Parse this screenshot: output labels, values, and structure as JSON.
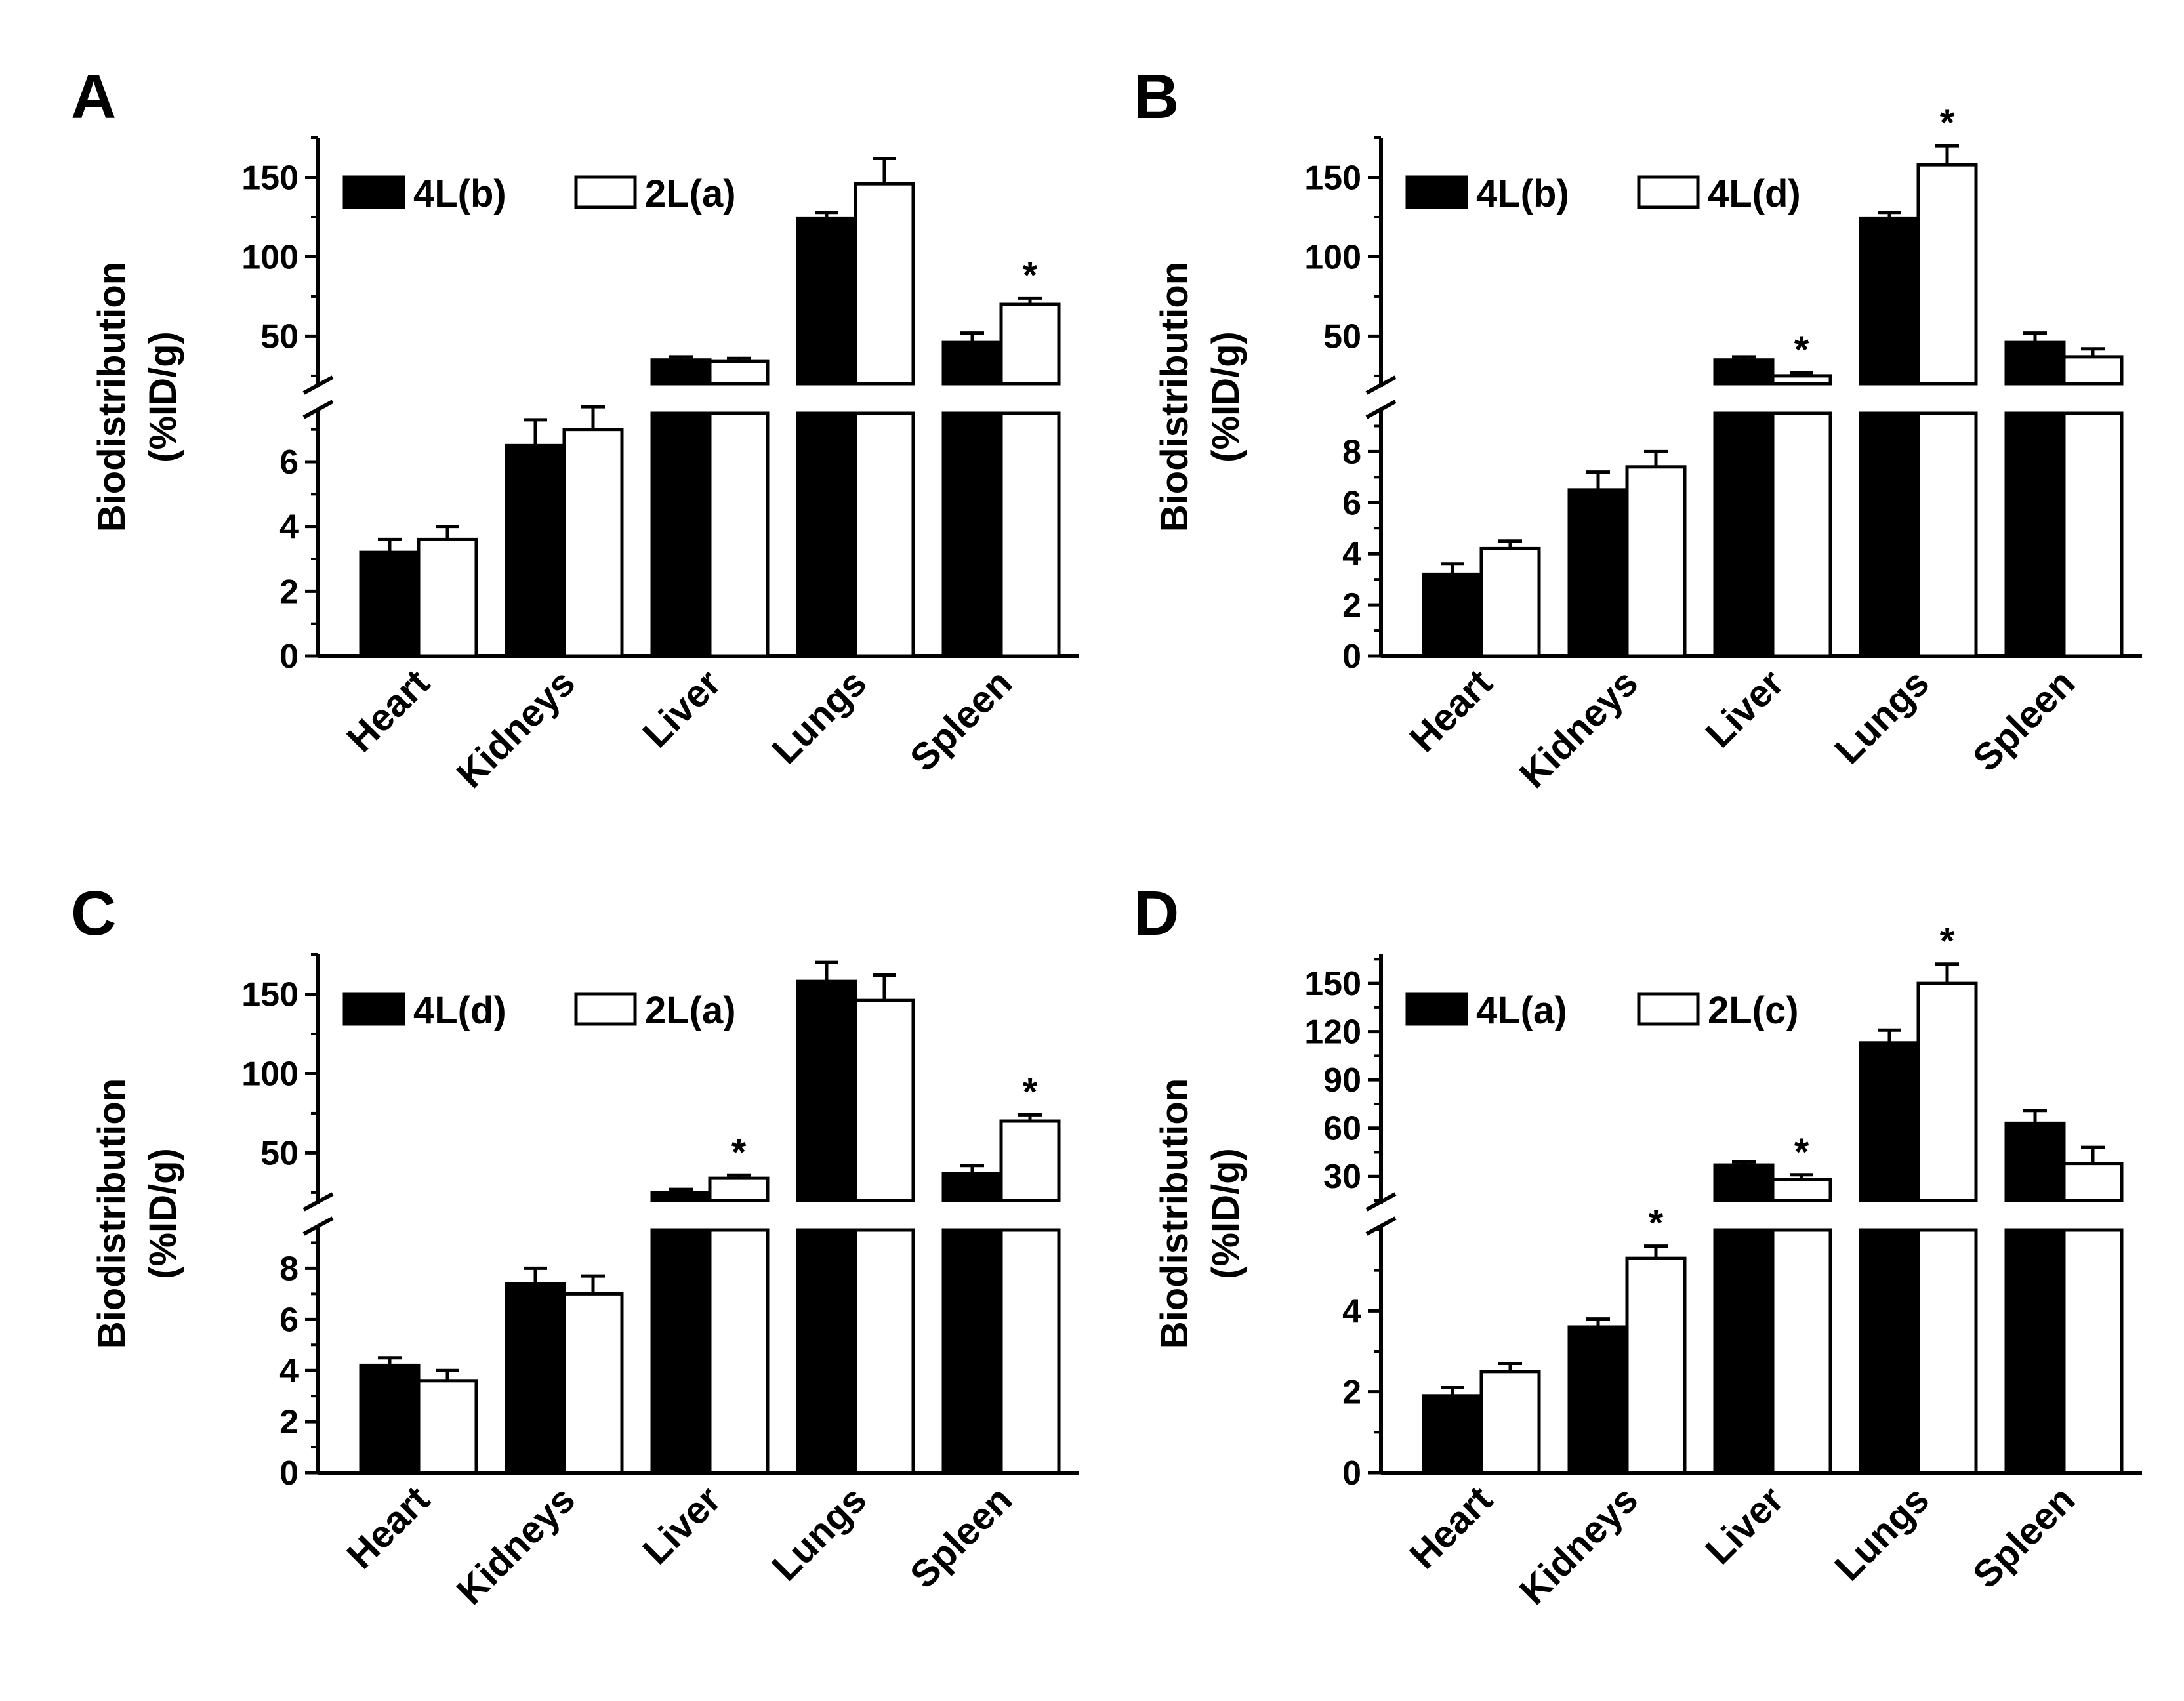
{
  "figure": {
    "ylabel_line1": "Biodistribution",
    "ylabel_line2": "(%ID/g)",
    "colors": {
      "series1_fill": "#000000",
      "series2_fill": "#ffffff",
      "stroke": "#000000"
    }
  },
  "chart_data": [
    {
      "panel": "A",
      "type": "bar",
      "categories": [
        "Heart",
        "Kidneys",
        "Liver",
        "Lungs",
        "Spleen"
      ],
      "series": [
        {
          "name": "4L(b)",
          "values": [
            3.2,
            6.5,
            35,
            124,
            46
          ],
          "errors": [
            0.4,
            0.8,
            2,
            4,
            6
          ]
        },
        {
          "name": "2L(a)",
          "values": [
            3.6,
            7.0,
            34,
            146,
            70
          ],
          "errors": [
            0.4,
            0.7,
            2,
            16,
            4
          ]
        }
      ],
      "significance": [
        {
          "category": "Spleen",
          "series": "2L(a)",
          "mark": "*"
        }
      ],
      "lower_axis": {
        "ylim": [
          0,
          7.5
        ],
        "ticks": [
          "0",
          "2",
          "4",
          "6"
        ]
      },
      "upper_axis": {
        "ylim": [
          20,
          175
        ],
        "ticks": [
          "50",
          "100",
          "150"
        ]
      },
      "ylabel": "Biodistribution (%ID/g)",
      "legend_position": "top-left",
      "broken_axis": true
    },
    {
      "panel": "B",
      "type": "bar",
      "categories": [
        "Heart",
        "Kidneys",
        "Liver",
        "Lungs",
        "Spleen"
      ],
      "series": [
        {
          "name": "4L(b)",
          "values": [
            3.2,
            6.5,
            35,
            124,
            46
          ],
          "errors": [
            0.4,
            0.7,
            2,
            4,
            6
          ]
        },
        {
          "name": "4L(d)",
          "values": [
            4.2,
            7.4,
            25,
            158,
            37
          ],
          "errors": [
            0.3,
            0.6,
            2,
            12,
            5
          ]
        }
      ],
      "significance": [
        {
          "category": "Liver",
          "series": "4L(d)",
          "mark": "*"
        },
        {
          "category": "Lungs",
          "series": "4L(d)",
          "mark": "*"
        }
      ],
      "lower_axis": {
        "ylim": [
          0,
          9.5
        ],
        "ticks": [
          "0",
          "2",
          "4",
          "6",
          "8"
        ]
      },
      "upper_axis": {
        "ylim": [
          20,
          175
        ],
        "ticks": [
          "50",
          "100",
          "150"
        ]
      },
      "ylabel": "Biodistribution (%ID/g)",
      "legend_position": "top-left",
      "broken_axis": true
    },
    {
      "panel": "C",
      "type": "bar",
      "categories": [
        "Heart",
        "Kidneys",
        "Liver",
        "Lungs",
        "Spleen"
      ],
      "series": [
        {
          "name": "4L(d)",
          "values": [
            4.2,
            7.4,
            25,
            158,
            37
          ],
          "errors": [
            0.3,
            0.6,
            2,
            12,
            5
          ]
        },
        {
          "name": "2L(a)",
          "values": [
            3.6,
            7.0,
            34,
            146,
            70
          ],
          "errors": [
            0.4,
            0.7,
            2,
            16,
            4
          ]
        }
      ],
      "significance": [
        {
          "category": "Liver",
          "series": "2L(a)",
          "mark": "*"
        },
        {
          "category": "Spleen",
          "series": "2L(a)",
          "mark": "*"
        }
      ],
      "lower_axis": {
        "ylim": [
          0,
          9.5
        ],
        "ticks": [
          "0",
          "2",
          "4",
          "6",
          "8"
        ]
      },
      "upper_axis": {
        "ylim": [
          20,
          175
        ],
        "ticks": [
          "50",
          "100",
          "150"
        ]
      },
      "ylabel": "Biodistribution (%ID/g)",
      "legend_position": "top-left",
      "broken_axis": true
    },
    {
      "panel": "D",
      "type": "bar",
      "categories": [
        "Heart",
        "Kidneys",
        "Liver",
        "Lungs",
        "Spleen"
      ],
      "series": [
        {
          "name": "4L(a)",
          "values": [
            1.9,
            3.6,
            37,
            113,
            63
          ],
          "errors": [
            0.2,
            0.2,
            2,
            8,
            8
          ]
        },
        {
          "name": "2L(c)",
          "values": [
            2.5,
            5.3,
            28,
            150,
            38
          ],
          "errors": [
            0.2,
            0.3,
            3,
            12,
            10
          ]
        }
      ],
      "significance": [
        {
          "category": "Kidneys",
          "series": "2L(c)",
          "mark": "*"
        },
        {
          "category": "Liver",
          "series": "2L(c)",
          "mark": "*"
        },
        {
          "category": "Lungs",
          "series": "2L(c)",
          "mark": "*"
        }
      ],
      "lower_axis": {
        "ylim": [
          0,
          6
        ],
        "ticks": [
          "0",
          "2",
          "4"
        ]
      },
      "upper_axis": {
        "ylim": [
          15,
          168
        ],
        "ticks": [
          "30",
          "60",
          "90",
          "120",
          "150"
        ]
      },
      "ylabel": "Biodistribution (%ID/g)",
      "legend_position": "top-left",
      "broken_axis": true
    }
  ]
}
